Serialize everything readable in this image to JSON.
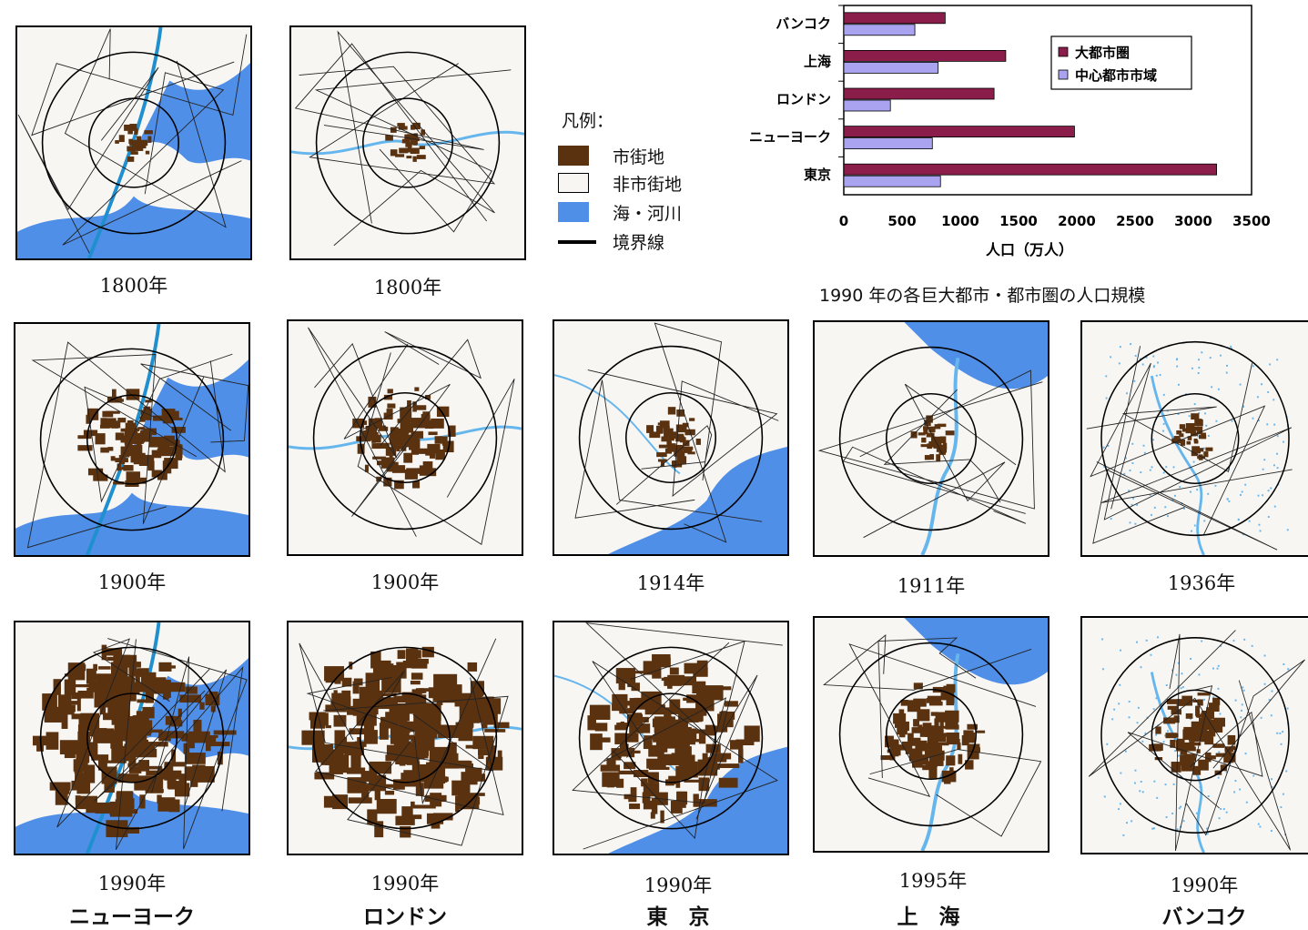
{
  "legend": {
    "title": "凡例：",
    "items": [
      {
        "label": "市街地",
        "color": "#5a3210"
      },
      {
        "label": "非市街地",
        "color": "#f7f6f3"
      },
      {
        "label": "海・河川",
        "color": "#4f8fe8"
      },
      {
        "label": "境界線",
        "color": "#000000"
      }
    ]
  },
  "maps": [
    {
      "id": "ny-1800",
      "year": "1800年",
      "city": "",
      "urban_level": 0.01
    },
    {
      "id": "london-1800",
      "year": "1800年",
      "city": "",
      "urban_level": 0.02
    },
    {
      "id": "ny-1900",
      "year": "1900年",
      "city": "",
      "urban_level": 0.3
    },
    {
      "id": "london-1900",
      "year": "1900年",
      "city": "",
      "urban_level": 0.3
    },
    {
      "id": "tokyo-1914",
      "year": "1914年",
      "city": "",
      "urban_level": 0.1
    },
    {
      "id": "shanghai-1911",
      "year": "1911年",
      "city": "",
      "urban_level": 0.03
    },
    {
      "id": "bangkok-1936",
      "year": "1936年",
      "city": "",
      "urban_level": 0.04
    },
    {
      "id": "ny-1990",
      "year": "1990年",
      "city": "ニューヨーク",
      "urban_level": 0.7
    },
    {
      "id": "london-1990",
      "year": "1990年",
      "city": "ロンドン",
      "urban_level": 0.75
    },
    {
      "id": "tokyo-1990",
      "year": "1990年",
      "city": "東　京",
      "urban_level": 0.6
    },
    {
      "id": "shanghai-1995",
      "year": "1995年",
      "city": "上　海",
      "urban_level": 0.3
    },
    {
      "id": "bangkok-1990",
      "year": "1990年",
      "city": "バンコク",
      "urban_level": 0.25
    }
  ],
  "chart_caption": "1990 年の各巨大都市・都市圏の人口規模",
  "chart_data": {
    "type": "bar",
    "orientation": "horizontal",
    "categories": [
      "バンコク",
      "上海",
      "ロンドン",
      "ニューヨーク",
      "東京"
    ],
    "series": [
      {
        "name": "大都市圏",
        "color": "#8b1d4a",
        "values": [
          870,
          1390,
          1290,
          1980,
          3200
        ]
      },
      {
        "name": "中心都市市域",
        "color": "#a9a3f0",
        "values": [
          610,
          810,
          400,
          760,
          830
        ]
      }
    ],
    "xlabel": "人口（万人）",
    "xlim": [
      0,
      3500
    ],
    "xticks": [
      "0",
      "500",
      "1000",
      "1500",
      "2000",
      "2500",
      "3000",
      "3500"
    ],
    "grid": false,
    "legend_position": "top-right"
  }
}
